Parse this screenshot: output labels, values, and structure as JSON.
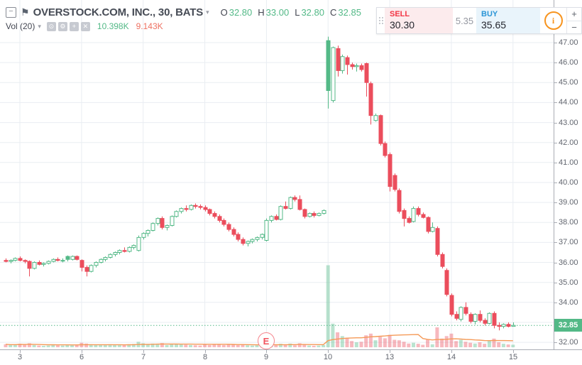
{
  "header": {
    "collapse_glyph": "−",
    "flag_glyph": "⚑",
    "symbol_title": "OVERSTOCK.COM, INC., 30, BATS",
    "symbol_caret": "▾",
    "ohlc": {
      "o_label": "O",
      "o": "32.80",
      "h_label": "H",
      "h": "33.00",
      "l_label": "L",
      "l": "32.80",
      "c_label": "C",
      "c": "32.85"
    },
    "indicator": {
      "label": "Vol (20)",
      "caret": "▾",
      "icons": [
        {
          "name": "eye-icon",
          "glyph": "⊙"
        },
        {
          "name": "settings-icon",
          "glyph": "⚙"
        },
        {
          "name": "add-indicator-icon",
          "glyph": "+"
        },
        {
          "name": "close-icon",
          "glyph": "✕"
        }
      ],
      "volume_value": "10.398K",
      "ma_value": "9.143K"
    }
  },
  "order_widget": {
    "sell_label": "SELL",
    "sell_price": "30.30",
    "spread": "5.35",
    "buy_label": "BUY",
    "buy_price": "35.65",
    "info_glyph": "i",
    "plus": "+",
    "minus": "−"
  },
  "price_axis": {
    "labels": [
      "47.00",
      "46.00",
      "45.00",
      "44.00",
      "43.00",
      "42.00",
      "41.00",
      "40.00",
      "39.00",
      "38.00",
      "37.00",
      "36.00",
      "35.00",
      "34.00",
      "32.00"
    ],
    "last_price_badge": "32.85"
  },
  "events": [
    {
      "label": "E",
      "index": 55,
      "description": "earnings"
    }
  ],
  "colors": {
    "up": "#53b987",
    "down": "#eb4d5c",
    "grid": "#e9edf2",
    "axis_line": "#a9acb4",
    "axis_text": "#62666f",
    "vol_ma_line": "#f59a58",
    "legend_value_up": "#53b987",
    "legend_value_ma": "#ee7162",
    "badge": "#53b987"
  },
  "chart_data": {
    "type": "candlestick-hollow",
    "title": "OVERSTOCK.COM, INC., 30, BATS",
    "symbol": "OVERSTOCK.COM, INC.",
    "interval_minutes": 30,
    "exchange": "BATS",
    "ylim": [
      31.8,
      47.5
    ],
    "grid": true,
    "last_price": 32.85,
    "day_labels": [
      "3",
      "6",
      "7",
      "8",
      "9",
      "10",
      "13",
      "14",
      "15"
    ],
    "day_start_indices": [
      3,
      16,
      29,
      42,
      55,
      68,
      81,
      94,
      107
    ],
    "bars_ohlcv": [
      [
        36.1,
        36.2,
        36.0,
        36.05,
        12
      ],
      [
        36.05,
        36.15,
        35.95,
        36.1,
        9
      ],
      [
        36.1,
        36.25,
        36.05,
        36.2,
        11
      ],
      [
        36.2,
        36.3,
        36.05,
        36.1,
        14
      ],
      [
        36.1,
        36.15,
        35.95,
        36.05,
        10
      ],
      [
        36.05,
        36.1,
        35.3,
        35.7,
        16
      ],
      [
        35.7,
        36.05,
        35.65,
        36.0,
        9
      ],
      [
        36.0,
        36.1,
        35.85,
        35.9,
        7
      ],
      [
        35.9,
        36.0,
        35.8,
        35.95,
        6
      ],
      [
        35.95,
        36.1,
        35.9,
        36.05,
        7
      ],
      [
        36.05,
        36.2,
        36.0,
        36.15,
        9
      ],
      [
        36.15,
        36.25,
        36.05,
        36.1,
        8
      ],
      [
        36.1,
        36.2,
        36.0,
        36.1,
        7
      ],
      [
        36.3,
        36.35,
        36.05,
        36.15,
        10
      ],
      [
        36.15,
        36.35,
        36.1,
        36.3,
        8
      ],
      [
        36.3,
        36.35,
        36.1,
        36.15,
        9
      ],
      [
        36.1,
        36.15,
        35.55,
        35.75,
        18
      ],
      [
        35.75,
        35.85,
        35.3,
        35.55,
        15
      ],
      [
        35.55,
        35.9,
        35.5,
        35.85,
        12
      ],
      [
        35.85,
        36.05,
        35.75,
        36.0,
        10
      ],
      [
        36.0,
        36.2,
        35.95,
        36.15,
        11
      ],
      [
        36.15,
        36.3,
        36.05,
        36.25,
        9
      ],
      [
        36.25,
        36.45,
        36.2,
        36.4,
        12
      ],
      [
        36.4,
        36.55,
        36.3,
        36.5,
        10
      ],
      [
        36.5,
        36.65,
        36.4,
        36.6,
        11
      ],
      [
        36.6,
        36.75,
        36.5,
        36.55,
        9
      ],
      [
        36.55,
        36.8,
        36.5,
        36.75,
        12
      ],
      [
        36.75,
        36.9,
        36.65,
        36.85,
        13
      ],
      [
        36.6,
        37.35,
        36.55,
        37.25,
        22
      ],
      [
        37.25,
        37.5,
        37.15,
        37.45,
        16
      ],
      [
        37.45,
        37.65,
        37.3,
        37.6,
        13
      ],
      [
        37.6,
        38.0,
        37.55,
        37.95,
        15
      ],
      [
        37.95,
        38.25,
        37.85,
        38.2,
        14
      ],
      [
        38.2,
        38.3,
        37.65,
        37.75,
        17
      ],
      [
        37.75,
        37.9,
        37.6,
        37.85,
        9
      ],
      [
        37.85,
        38.35,
        37.8,
        38.3,
        14
      ],
      [
        38.3,
        38.6,
        38.25,
        38.55,
        12
      ],
      [
        38.55,
        38.75,
        38.45,
        38.7,
        11
      ],
      [
        38.7,
        38.85,
        38.55,
        38.65,
        10
      ],
      [
        38.65,
        38.9,
        38.6,
        38.85,
        9
      ],
      [
        38.85,
        38.95,
        38.7,
        38.8,
        8
      ],
      [
        38.8,
        38.9,
        38.65,
        38.75,
        7
      ],
      [
        38.75,
        38.85,
        38.55,
        38.65,
        10
      ],
      [
        38.65,
        38.7,
        38.35,
        38.45,
        9
      ],
      [
        38.45,
        38.55,
        38.2,
        38.3,
        11
      ],
      [
        38.3,
        38.4,
        38.0,
        38.1,
        10
      ],
      [
        38.1,
        38.2,
        37.8,
        37.9,
        9
      ],
      [
        37.9,
        38.0,
        37.55,
        37.65,
        12
      ],
      [
        37.65,
        37.75,
        37.3,
        37.4,
        10
      ],
      [
        37.4,
        37.5,
        37.05,
        37.15,
        9
      ],
      [
        37.15,
        37.25,
        36.85,
        36.95,
        11
      ],
      [
        36.95,
        37.1,
        36.8,
        37.05,
        8
      ],
      [
        37.05,
        37.2,
        36.95,
        37.15,
        7
      ],
      [
        37.15,
        37.3,
        37.05,
        37.25,
        8
      ],
      [
        37.25,
        37.45,
        37.15,
        37.4,
        9
      ],
      [
        37.1,
        38.2,
        37.05,
        38.1,
        24
      ],
      [
        38.1,
        38.35,
        38.0,
        38.3,
        12
      ],
      [
        38.3,
        38.4,
        38.1,
        38.15,
        8
      ],
      [
        38.15,
        38.85,
        38.1,
        38.8,
        14
      ],
      [
        38.8,
        39.05,
        38.65,
        38.7,
        10
      ],
      [
        38.7,
        39.3,
        38.65,
        39.25,
        15
      ],
      [
        39.25,
        39.35,
        39.05,
        39.15,
        8
      ],
      [
        39.15,
        39.35,
        38.6,
        38.65,
        16
      ],
      [
        38.65,
        38.7,
        38.2,
        38.3,
        12
      ],
      [
        38.3,
        38.5,
        38.25,
        38.45,
        7
      ],
      [
        38.45,
        38.55,
        38.25,
        38.35,
        6
      ],
      [
        38.35,
        38.5,
        38.3,
        38.45,
        7
      ],
      [
        38.45,
        38.65,
        38.4,
        38.6,
        9
      ],
      [
        47.1,
        47.3,
        43.7,
        44.6,
        330
      ],
      [
        44.1,
        46.8,
        44.0,
        46.75,
        95
      ],
      [
        46.7,
        46.85,
        45.3,
        45.6,
        60
      ],
      [
        45.6,
        46.4,
        45.45,
        46.3,
        45
      ],
      [
        46.25,
        46.35,
        45.4,
        45.9,
        38
      ],
      [
        45.9,
        46.0,
        45.65,
        45.8,
        25
      ],
      [
        45.8,
        45.95,
        45.55,
        45.85,
        20
      ],
      [
        45.85,
        45.95,
        45.55,
        45.65,
        22
      ],
      [
        45.95,
        46.0,
        44.3,
        45.0,
        48
      ],
      [
        44.95,
        45.05,
        42.9,
        43.35,
        55
      ],
      [
        43.1,
        43.45,
        43.05,
        43.35,
        28
      ],
      [
        43.35,
        43.4,
        41.85,
        41.95,
        42
      ],
      [
        41.95,
        42.05,
        41.25,
        41.35,
        36
      ],
      [
        41.4,
        41.5,
        39.55,
        39.8,
        50
      ],
      [
        40.35,
        40.45,
        39.55,
        39.65,
        30
      ],
      [
        39.6,
        39.7,
        38.45,
        38.55,
        28
      ],
      [
        38.6,
        38.7,
        37.8,
        38.2,
        22
      ],
      [
        38.2,
        38.3,
        37.95,
        38.0,
        15
      ],
      [
        38.05,
        38.8,
        38.0,
        38.7,
        18
      ],
      [
        38.7,
        38.8,
        38.3,
        38.4,
        14
      ],
      [
        38.4,
        38.5,
        38.2,
        38.25,
        10
      ],
      [
        38.25,
        38.3,
        37.45,
        37.55,
        30
      ],
      [
        37.55,
        38.0,
        37.5,
        37.75,
        12
      ],
      [
        37.7,
        37.8,
        36.3,
        36.4,
        80
      ],
      [
        36.4,
        36.5,
        35.7,
        35.8,
        35
      ],
      [
        35.6,
        35.7,
        34.3,
        34.4,
        45
      ],
      [
        34.35,
        34.45,
        33.3,
        33.4,
        55
      ],
      [
        33.4,
        33.55,
        33.1,
        33.2,
        25
      ],
      [
        33.15,
        33.8,
        33.05,
        33.75,
        30
      ],
      [
        33.75,
        34.0,
        33.35,
        33.45,
        22
      ],
      [
        33.4,
        33.5,
        32.95,
        33.05,
        18
      ],
      [
        33.05,
        33.45,
        32.9,
        33.4,
        15
      ],
      [
        33.4,
        33.6,
        33.0,
        33.1,
        20
      ],
      [
        33.1,
        33.2,
        32.85,
        32.95,
        14
      ],
      [
        32.95,
        33.5,
        32.9,
        33.45,
        26
      ],
      [
        33.45,
        33.55,
        32.7,
        32.85,
        35
      ],
      [
        32.85,
        33.0,
        32.6,
        32.8,
        20
      ],
      [
        32.8,
        32.95,
        32.7,
        32.9,
        14
      ],
      [
        32.9,
        33.0,
        32.75,
        32.8,
        11
      ],
      [
        32.8,
        33.0,
        32.8,
        32.85,
        10.4
      ]
    ],
    "volume_indicator": {
      "name": "Vol",
      "ma_period": 20,
      "current_volume": "10.398K",
      "ma_value": "9.143K"
    }
  }
}
